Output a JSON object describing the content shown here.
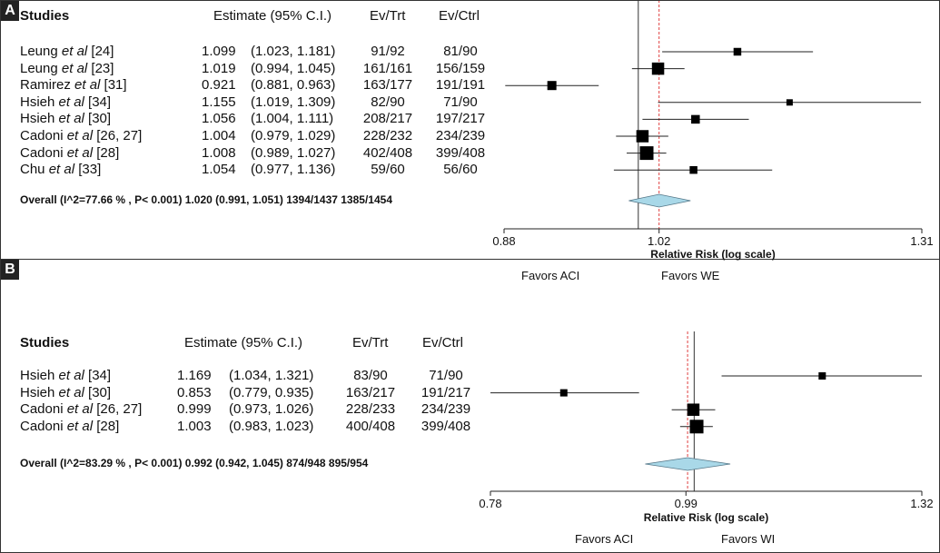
{
  "panels": [
    {
      "letter": "A",
      "headers": {
        "studies": "Studies",
        "estimate": "Estimate (95% C.I.)",
        "ev_trt": "Ev/Trt",
        "ev_ctrl": "Ev/Ctrl"
      },
      "overall": "Overall (I^2=77.66 % , P< 0.001) 1.020 (0.991, 1.051) 1394/1437 1385/1454",
      "favors_left": "Favors ACI",
      "favors_right": "Favors WE",
      "axis_title": "Relative Risk (log scale)"
    },
    {
      "letter": "B",
      "headers": {
        "studies": "Studies",
        "estimate": "Estimate (95% C.I.)",
        "ev_trt": "Ev/Trt",
        "ev_ctrl": "Ev/Ctrl"
      },
      "overall": "Overall (I^2=83.29 % , P< 0.001) 0.992 (0.942, 1.045) 874/948 895/954",
      "favors_left": "Favors ACI",
      "favors_right": "Favors WI",
      "axis_title": "Relative Risk (log scale)"
    }
  ],
  "chart_data": [
    {
      "type": "forest",
      "scale": "log",
      "xlabel": "Relative Risk (log scale)",
      "xlim": [
        0.88,
        1.31
      ],
      "ticks": [
        "0.88",
        "1.02",
        "1.31"
      ],
      "tick_values": [
        0.88,
        1.02,
        1.31
      ],
      "reference_line": 1.0,
      "pooled_line": 1.02,
      "colors": {
        "diamond": "#a9d8e8",
        "pooled_line": "#e04040",
        "marks": "#000000"
      },
      "studies": [
        {
          "name": "Leung",
          "ref": "[24]",
          "est": 1.099,
          "lo": 1.023,
          "hi": 1.181,
          "est_text": "1.099",
          "ci_text": "(1.023, 1.181)",
          "ev_trt": "91/92",
          "ev_ctrl": "81/90",
          "weight": 0.35
        },
        {
          "name": "Leung",
          "ref": "[23]",
          "est": 1.019,
          "lo": 0.994,
          "hi": 1.045,
          "est_text": "1.019",
          "ci_text": "(0.994, 1.045)",
          "ev_trt": "161/161",
          "ev_ctrl": "156/159",
          "weight": 0.85
        },
        {
          "name": "Ramirez",
          "ref": "[31]",
          "est": 0.921,
          "lo": 0.881,
          "hi": 0.963,
          "est_text": "0.921",
          "ci_text": "(0.881, 0.963)",
          "ev_trt": "163/177",
          "ev_ctrl": "191/191",
          "weight": 0.5
        },
        {
          "name": "Hsieh",
          "ref": "[34]",
          "est": 1.155,
          "lo": 1.019,
          "hi": 1.309,
          "est_text": "1.155",
          "ci_text": "(1.019, 1.309)",
          "ev_trt": "82/90",
          "ev_ctrl": "71/90",
          "weight": 0.2
        },
        {
          "name": "Hsieh",
          "ref": "[30]",
          "est": 1.056,
          "lo": 1.004,
          "hi": 1.111,
          "est_text": "1.056",
          "ci_text": "(1.004, 1.111)",
          "ev_trt": "208/217",
          "ev_ctrl": "197/217",
          "weight": 0.45
        },
        {
          "name": "Cadoni",
          "ref": "[26, 27]",
          "est": 1.004,
          "lo": 0.979,
          "hi": 1.029,
          "est_text": "1.004",
          "ci_text": "(0.979, 1.029)",
          "ev_trt": "228/232",
          "ev_ctrl": "234/239",
          "weight": 0.85
        },
        {
          "name": "Cadoni",
          "ref": "[28]",
          "est": 1.008,
          "lo": 0.989,
          "hi": 1.027,
          "est_text": "1.008",
          "ci_text": "(0.989, 1.027)",
          "ev_trt": "402/408",
          "ev_ctrl": "399/408",
          "weight": 1.0
        },
        {
          "name": "Chu",
          "ref": "[33]",
          "est": 1.054,
          "lo": 0.977,
          "hi": 1.136,
          "est_text": "1.054",
          "ci_text": "(0.977, 1.136)",
          "ev_trt": "59/60",
          "ev_ctrl": "56/60",
          "weight": 0.35
        }
      ],
      "overall": {
        "est": 1.02,
        "lo": 0.991,
        "hi": 1.051
      }
    },
    {
      "type": "forest",
      "scale": "log",
      "xlabel": "Relative Risk (log scale)",
      "xlim": [
        0.78,
        1.32
      ],
      "ticks": [
        "0.78",
        "0.99",
        "1.32"
      ],
      "tick_values": [
        0.78,
        0.99,
        1.32
      ],
      "reference_line": 1.0,
      "pooled_line": 0.992,
      "colors": {
        "diamond": "#a9d8e8",
        "pooled_line": "#e04040",
        "marks": "#000000"
      },
      "studies": [
        {
          "name": "Hsieh",
          "ref": "[34]",
          "est": 1.169,
          "lo": 1.034,
          "hi": 1.321,
          "est_text": "1.169",
          "ci_text": "(1.034, 1.321)",
          "ev_trt": "83/90",
          "ev_ctrl": "71/90",
          "weight": 0.3
        },
        {
          "name": "Hsieh",
          "ref": "[30]",
          "est": 0.853,
          "lo": 0.779,
          "hi": 0.935,
          "est_text": "0.853",
          "ci_text": "(0.779, 0.935)",
          "ev_trt": "163/217",
          "ev_ctrl": "191/217",
          "weight": 0.3
        },
        {
          "name": "Cadoni",
          "ref": "[26, 27]",
          "est": 0.999,
          "lo": 0.973,
          "hi": 1.026,
          "est_text": "0.999",
          "ci_text": "(0.973, 1.026)",
          "ev_trt": "228/233",
          "ev_ctrl": "234/239",
          "weight": 0.85
        },
        {
          "name": "Cadoni",
          "ref": "[28]",
          "est": 1.003,
          "lo": 0.983,
          "hi": 1.023,
          "est_text": "1.003",
          "ci_text": "(0.983, 1.023)",
          "ev_trt": "400/408",
          "ev_ctrl": "399/408",
          "weight": 1.0
        }
      ],
      "overall": {
        "est": 0.992,
        "lo": 0.942,
        "hi": 1.045
      }
    }
  ]
}
